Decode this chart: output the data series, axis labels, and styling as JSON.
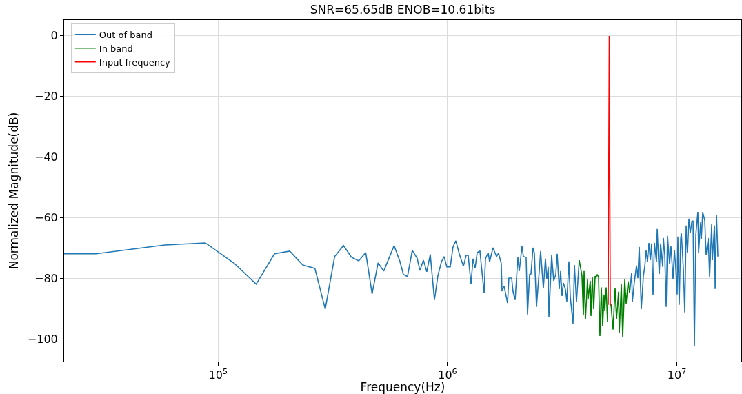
{
  "chart_data": {
    "type": "line",
    "title": "SNR=65.65dB ENOB=10.61bits",
    "xlabel": "Frequency(Hz)",
    "ylabel": "Normalized Magnitude(dB)",
    "log": "x",
    "grid": true,
    "legend": "top left",
    "line_style": "solid",
    "marker": "none",
    "xlim": [
      21300,
      19100000
    ],
    "xticks": [
      {
        "value": 100000,
        "label": "10$^{5}$"
      },
      {
        "value": 1000000,
        "label": "10$^{6}$"
      },
      {
        "value": 10000000,
        "label": "10$^{7}$"
      }
    ],
    "ylim": [
      -107.3,
      5.2
    ],
    "yticks": [
      {
        "value": -100,
        "label": "−100"
      },
      {
        "value": -80,
        "label": "−80"
      },
      {
        "value": -60,
        "label": "−60"
      },
      {
        "value": -40,
        "label": "−40"
      },
      {
        "value": -20,
        "label": "−20"
      },
      0
    ],
    "series": [
      {
        "name": "Out of band",
        "color": "#1f77b4",
        "x": [
          21300,
          29300,
          58600,
          87900,
          117000,
          146500,
          176000,
          205000,
          234000,
          264000,
          293000,
          322000,
          352000,
          381000,
          410000,
          440000,
          469000,
          498000,
          527000,
          585000,
          620000,
          642000,
          669000,
          702000,
          737000,
          758000,
          785000,
          812000,
          841000,
          877000,
          908000,
          940000,
          966000,
          993000,
          1028000,
          1057000,
          1087000,
          1125000,
          1173000,
          1206000,
          1231000,
          1266000,
          1292000,
          1319000,
          1347000,
          1385000,
          1444000,
          1464000,
          1505000,
          1526000,
          1579000,
          1635000,
          1669000,
          1716000,
          1728000,
          1765000,
          1827000,
          1852000,
          1904000,
          1931000,
          1971000,
          2027000,
          2055000,
          2113000,
          2142000,
          2202000,
          2233000,
          2280000,
          2312000,
          2360000,
          2393000,
          2443000,
          2512000,
          2547000,
          2618000,
          2673000,
          2711000,
          2749000,
          2768000,
          2845000,
          2905000,
          2966000,
          3008000,
          3071000,
          3114000,
          3157000,
          3201000,
          3268000,
          3314000,
          3383000,
          3430000,
          3527000,
          3576000,
          3651000,
          3753000,
          5000000,
          6223000,
          6354000,
          6398000,
          6532000,
          6670000,
          6762000,
          6857000,
          6904000,
          7000000,
          7147000,
          7247000,
          7348000,
          7450000,
          7554000,
          7660000,
          7767000,
          7875000,
          7985000,
          8153000,
          8209000,
          8382000,
          8499000,
          8678000,
          8738000,
          8860000,
          8983000,
          9108000,
          9299000,
          9428000,
          9627000,
          9761000,
          9897000,
          10030000,
          10100000,
          10240000,
          10390000,
          10460000,
          10680000,
          10830000,
          10980000,
          11130000,
          11290000,
          11450000,
          11610000,
          11770000,
          11930000,
          12100000,
          12350000,
          12440000,
          12700000,
          12790000,
          12970000,
          13240000,
          13420000,
          13710000,
          13900000,
          14190000,
          14290000,
          14590000,
          14690000,
          14890000,
          15100000
        ],
        "values": [
          -71.8,
          -71.8,
          -68.9,
          -68.2,
          -74.8,
          -81.8,
          -71.8,
          -70.9,
          -75.5,
          -76.6,
          -90,
          -72.7,
          -69.1,
          -72.9,
          -74.1,
          -71.4,
          -85,
          -74.8,
          -77.5,
          -69.1,
          -74.3,
          -78.6,
          -79.3,
          -70.7,
          -73.2,
          -77.3,
          -73.9,
          -77.7,
          -72,
          -87,
          -79,
          -74.5,
          -72.7,
          -76.1,
          -76.1,
          -69.5,
          -67.5,
          -71.8,
          -75.9,
          -72.3,
          -72.3,
          -81.8,
          -73.4,
          -76.6,
          -71.4,
          -70.9,
          -84.8,
          -73.4,
          -71.4,
          -74.5,
          -69.8,
          -72.7,
          -71.6,
          -75,
          -84.1,
          -82.5,
          -88,
          -79.8,
          -79.8,
          -84.3,
          -87,
          -73,
          -77.5,
          -69.3,
          -72.7,
          -73,
          -91.8,
          -78.6,
          -78.4,
          -69.8,
          -71.6,
          -89.3,
          -77.5,
          -70.9,
          -83.2,
          -73.4,
          -80.2,
          -76.1,
          -92.7,
          -72.3,
          -80.7,
          -78.6,
          -71.8,
          -83.4,
          -77.5,
          -85.7,
          -81.4,
          -83.6,
          -87.5,
          -74.3,
          -85.9,
          -94.8,
          -75.5,
          -87.7,
          -73.9,
          null,
          -84.8,
          -78,
          -87.7,
          -80.9,
          -75.7,
          -79.8,
          -69.5,
          -76.8,
          -90,
          -79.1,
          -76.1,
          -70.7,
          -74.5,
          -68.2,
          -73.9,
          -68.4,
          -85.5,
          -68.2,
          -74.5,
          -63.6,
          -78.4,
          -68.4,
          -76.1,
          -66.6,
          -72.3,
          -89.3,
          -65.9,
          -75.2,
          -69.3,
          -80.2,
          -70.5,
          -76.8,
          -85.2,
          -66.1,
          -88.6,
          -67,
          -65,
          -76.8,
          -91.1,
          -62.5,
          -71.6,
          -60.2,
          -64.8,
          -61.4,
          -60.9,
          -102.3,
          -65.5,
          -58,
          -71.6,
          -61.4,
          -67,
          -58,
          -60.9,
          -72.3,
          -66.6,
          -79.5,
          -62,
          -73.9,
          -62.5,
          -83.4,
          -58.9,
          -72.7
        ]
      },
      {
        "name": "In band",
        "color": "#008000",
        "x": [
          3753000,
          3859000,
          3913000,
          3940000,
          3995000,
          4079000,
          4107000,
          4193000,
          4222000,
          4281000,
          4341000,
          4402000,
          4432000,
          4494000,
          4557000,
          4620000,
          4685000,
          4750000,
          4816000,
          4850000,
          4918000,
          4986000,
          5073000,
          5161000,
          5269000,
          5381000,
          5456000,
          5570000,
          5609000,
          5727000,
          5807000,
          5929000,
          6011000,
          6138000,
          6223000
        ],
        "values": [
          -73.9,
          -79.1,
          -92,
          -77.5,
          -93.4,
          -80.2,
          -86.6,
          -80.7,
          -92.3,
          -79.5,
          -90,
          -79.1,
          -79.8,
          -78.6,
          -79.5,
          -98.9,
          -82.9,
          -95.7,
          -85.2,
          -90.5,
          -82.9,
          -94.3,
          null,
          -88.2,
          -96.8,
          -83.2,
          -93.4,
          -84.3,
          -98,
          -81.8,
          -99.3,
          -80.2,
          -88.2,
          -80.9,
          -84.8
        ]
      },
      {
        "name": "Input frequency",
        "color": "#ff0000",
        "x": [
          5020000,
          5073000,
          5126000
        ],
        "values": [
          -88.6,
          0,
          -88.9
        ]
      }
    ]
  }
}
